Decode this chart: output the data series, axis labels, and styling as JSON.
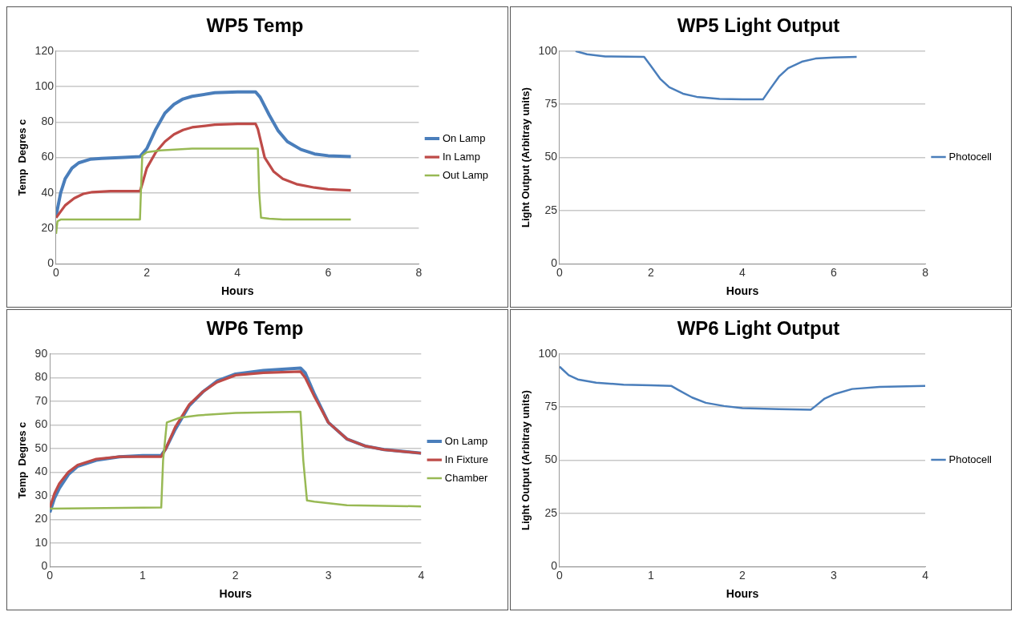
{
  "chart_data": [
    {
      "type": "line",
      "title": "WP5 Temp",
      "xlabel": "Hours",
      "ylabel": "Temp  Degres c",
      "xlim": [
        0,
        8
      ],
      "xticks": [
        0,
        2,
        4,
        6,
        8
      ],
      "ylim": [
        0,
        120
      ],
      "yticks": [
        0,
        20,
        40,
        60,
        80,
        100,
        120
      ],
      "grid": "y",
      "legend": "right",
      "marker": "none",
      "series": [
        {
          "name": "On Lamp",
          "color": "#4a7ebb",
          "x": [
            0,
            0.1,
            0.2,
            0.35,
            0.5,
            0.75,
            1,
            1.5,
            1.85,
            2,
            2.2,
            2.4,
            2.6,
            2.8,
            3,
            3.5,
            4,
            4.4,
            4.5,
            4.7,
            4.9,
            5.1,
            5.4,
            5.7,
            6,
            6.5
          ],
          "values": [
            27,
            40,
            48,
            54,
            57,
            59,
            59.5,
            60,
            60.5,
            65,
            76,
            85,
            90,
            93,
            94.5,
            96.5,
            97,
            97,
            94,
            84,
            75,
            69,
            64.5,
            62,
            61,
            60.5
          ]
        },
        {
          "name": "In Lamp",
          "color": "#be4b48",
          "x": [
            0,
            0.2,
            0.4,
            0.6,
            0.8,
            1.2,
            1.85,
            1.9,
            2,
            2.2,
            2.4,
            2.6,
            2.8,
            3,
            3.5,
            4,
            4.4,
            4.45,
            4.6,
            4.8,
            5,
            5.3,
            5.7,
            6,
            6.5
          ],
          "values": [
            26,
            33,
            37,
            39.5,
            40.5,
            41,
            41,
            45,
            54,
            63,
            69,
            73,
            75.5,
            77,
            78.5,
            79,
            79,
            76,
            60,
            52,
            48,
            45,
            43,
            42,
            41.5
          ]
        },
        {
          "name": "Out Lamp",
          "color": "#98b954",
          "x": [
            0,
            0.03,
            0.1,
            1.85,
            1.87,
            1.9,
            2,
            2.3,
            3,
            4.45,
            4.48,
            4.52,
            4.7,
            5,
            6.5
          ],
          "values": [
            17,
            24,
            25,
            25,
            40,
            61,
            63,
            64,
            65,
            65,
            40,
            26,
            25.5,
            25,
            25
          ]
        }
      ]
    },
    {
      "type": "line",
      "title": "WP5 Light Output",
      "xlabel": "Hours",
      "ylabel": "Light Output (Arbitray units)",
      "xlim": [
        0,
        8
      ],
      "xticks": [
        0,
        2,
        4,
        6,
        8
      ],
      "ylim": [
        0,
        100
      ],
      "yticks": [
        0,
        25,
        50,
        75,
        100
      ],
      "grid": "y",
      "legend": "right",
      "marker": "none",
      "series": [
        {
          "name": "Photocell",
          "color": "#4a7ebb",
          "x": [
            0.35,
            0.6,
            1,
            1.85,
            2,
            2.2,
            2.4,
            2.7,
            3,
            3.5,
            4,
            4.45,
            4.6,
            4.8,
            5,
            5.3,
            5.6,
            6,
            6.5
          ],
          "values": [
            100,
            98.5,
            97.5,
            97.3,
            93,
            87,
            83,
            80,
            78.5,
            77.5,
            77.3,
            77.3,
            82,
            88,
            92,
            95,
            96.5,
            97,
            97.3
          ]
        }
      ]
    },
    {
      "type": "line",
      "title": "WP6 Temp",
      "xlabel": "Hours",
      "ylabel": "Temp  Degres c",
      "xlim": [
        0,
        4
      ],
      "xticks": [
        0,
        1,
        2,
        3,
        4
      ],
      "ylim": [
        0,
        90
      ],
      "yticks": [
        0,
        10,
        20,
        30,
        40,
        50,
        60,
        70,
        80,
        90
      ],
      "grid": "y",
      "legend": "right",
      "marker": "none",
      "series": [
        {
          "name": "On Lamp",
          "color": "#4a7ebb",
          "x": [
            0,
            0.05,
            0.1,
            0.2,
            0.3,
            0.5,
            0.75,
            1,
            1.2,
            1.25,
            1.35,
            1.5,
            1.65,
            1.8,
            2,
            2.3,
            2.7,
            2.75,
            2.85,
            3,
            3.2,
            3.4,
            3.6,
            4
          ],
          "values": [
            23,
            29,
            33,
            39,
            42.5,
            45,
            46.5,
            47,
            47,
            50,
            58,
            68,
            74,
            78.5,
            81.5,
            83,
            84,
            82,
            73,
            61,
            54,
            51,
            49.5,
            48
          ]
        },
        {
          "name": "In Fixture",
          "color": "#be4b48",
          "x": [
            0,
            0.05,
            0.1,
            0.2,
            0.3,
            0.5,
            0.75,
            1,
            1.2,
            1.25,
            1.35,
            1.5,
            1.65,
            1.8,
            2,
            2.3,
            2.7,
            2.75,
            2.85,
            3,
            3.2,
            3.4,
            3.6,
            4
          ],
          "values": [
            25,
            31,
            35,
            40,
            43,
            45.5,
            46.5,
            46.5,
            46.5,
            50,
            59,
            68.5,
            74,
            78,
            81,
            82,
            82.5,
            80,
            72,
            61,
            54,
            51,
            49.5,
            48
          ]
        },
        {
          "name": "Chamber",
          "color": "#98b954",
          "x": [
            0,
            1.2,
            1.22,
            1.26,
            1.4,
            1.6,
            2,
            2.7,
            2.73,
            2.77,
            2.85,
            3.2,
            4
          ],
          "values": [
            24.5,
            25,
            45,
            61,
            63,
            64,
            65,
            65.5,
            45,
            28,
            27.5,
            26,
            25.5
          ]
        }
      ]
    },
    {
      "type": "line",
      "title": "WP6 Light Output",
      "xlabel": "Hours",
      "ylabel": "Light Output (Arbitray units)",
      "xlim": [
        0,
        4
      ],
      "xticks": [
        0,
        1,
        2,
        3,
        4
      ],
      "ylim": [
        0,
        100
      ],
      "yticks": [
        0,
        25,
        50,
        75,
        100
      ],
      "grid": "y",
      "legend": "right",
      "marker": "none",
      "series": [
        {
          "name": "Photocell",
          "color": "#4a7ebb",
          "x": [
            0,
            0.1,
            0.2,
            0.4,
            0.7,
            1,
            1.22,
            1.3,
            1.45,
            1.6,
            1.8,
            2,
            2.4,
            2.75,
            2.8,
            2.9,
            3,
            3.2,
            3.5,
            4
          ],
          "values": [
            94,
            90,
            88,
            86.5,
            85.5,
            85.2,
            85,
            83,
            79.5,
            77,
            75.5,
            74.5,
            74,
            73.8,
            75.5,
            79,
            81,
            83.5,
            84.5,
            85
          ]
        }
      ]
    }
  ]
}
